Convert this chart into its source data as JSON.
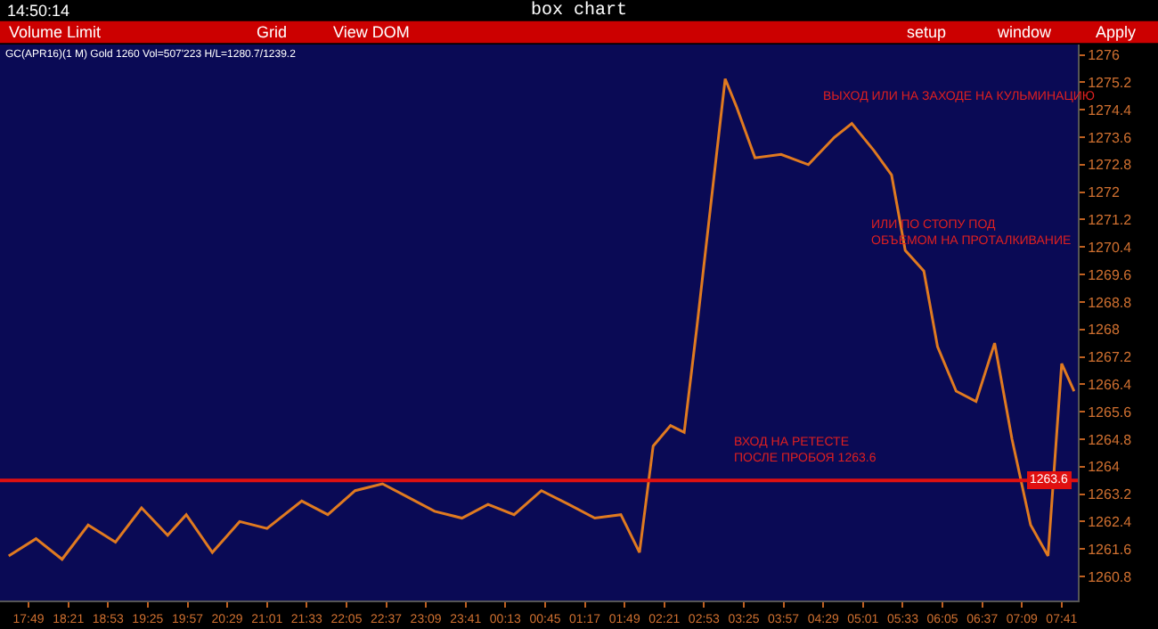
{
  "chart_data": {
    "type": "line",
    "title": "box chart",
    "annotations": [
      "14:50:14",
      "Volume Limit",
      "Grid",
      "View DOM",
      "setup",
      "window",
      "Apply",
      "GC(APR16)(1 M) Gold 1260 Vol=507'223 H/L=1280.7/1239.2",
      "ВЫХОД ИЛИ НА ЗАХОДЕ НА КУЛЬМИНАЦИЮ",
      "ИЛИ ПО СТОПУ ПОД\nОБЪЕМОМ НА ПРОТАЛКИВАНИЕ",
      "ВХОД НА РЕТЕСТЕ\nПОСЛЕ ПРОБОЯ 1263.6"
    ],
    "x": [
      "--03-01T17:33",
      "--03-01T17:55",
      "--03-01T18:16",
      "--03-01T18:37",
      "--03-01T18:59",
      "--03-01T19:20",
      "--03-01T19:41",
      "--03-01T19:56",
      "--03-01T20:17",
      "--03-01T20:39",
      "--03-01T21:01",
      "--03-01T21:29",
      "--03-01T21:50",
      "--03-01T22:12",
      "--03-01T22:34",
      "--03-01T22:55",
      "--03-01T23:16",
      "--03-01T23:38",
      "--03-01T23:59",
      "--03-02T00:20",
      "--03-02T00:42",
      "--03-02T01:04",
      "--03-02T01:25",
      "--03-02T01:46",
      "--03-02T02:01",
      "--03-02T02:12",
      "--03-02T02:26",
      "--03-02T02:37",
      "--03-02T02:47",
      "--03-02T02:58",
      "--03-02T03:10",
      "--03-02T03:19",
      "--03-02T03:34",
      "--03-02T03:55",
      "--03-02T04:17",
      "--03-02T04:38",
      "--03-02T04:52",
      "--03-02T05:10",
      "--03-02T05:24",
      "--03-02T05:35",
      "--03-02T05:50",
      "--03-02T06:01",
      "--03-02T06:16",
      "--03-02T06:32",
      "--03-02T06:47",
      "--03-02T07:01",
      "--03-02T07:16",
      "--03-02T07:30",
      "--03-02T07:41",
      "--03-02T07:51"
    ],
    "series": [
      {
        "color": "#e07a20",
        "values": [
          1261.4,
          1261.9,
          1261.3,
          1262.3,
          1261.8,
          1262.8,
          1262.0,
          1262.6,
          1261.5,
          1262.4,
          1262.2,
          1263.0,
          1262.6,
          1263.3,
          1263.5,
          1263.1,
          1262.7,
          1262.5,
          1262.9,
          1262.6,
          1263.3,
          1262.9,
          1262.5,
          1262.6,
          1261.5,
          1264.6,
          1265.2,
          1265.0,
          1268.0,
          1271.5,
          1275.3,
          1274.5,
          1273.0,
          1273.1,
          1272.8,
          1273.6,
          1274.0,
          1273.2,
          1272.5,
          1270.3,
          1269.7,
          1267.5,
          1266.2,
          1265.9,
          1267.6,
          1264.8,
          1262.3,
          1261.4,
          1267.0,
          1266.2
        ]
      }
    ],
    "xlim": [
      "--03-01T17:26",
      "--03-02T07:54"
    ],
    "xticks": [
      {
        "value": "--03-01T17:49",
        "label": "17:49"
      },
      {
        "value": "--03-01T18:21",
        "label": "18:21"
      },
      {
        "value": "--03-01T18:53",
        "label": "18:53"
      },
      {
        "value": "--03-01T19:25",
        "label": "19:25"
      },
      {
        "value": "--03-01T19:57",
        "label": "19:57"
      },
      {
        "value": "--03-01T20:29",
        "label": "20:29"
      },
      {
        "value": "--03-01T21:01",
        "label": "21:01"
      },
      {
        "value": "--03-01T21:33",
        "label": "21:33"
      },
      {
        "value": "--03-01T22:05",
        "label": "22:05"
      },
      {
        "value": "--03-01T22:37",
        "label": "22:37"
      },
      {
        "value": "--03-01T23:09",
        "label": "23:09"
      },
      {
        "value": "--03-01T23:41",
        "label": "23:41"
      },
      {
        "value": "--03-02T00:13",
        "label": "00:13"
      },
      {
        "value": "--03-02T00:45",
        "label": "00:45"
      },
      {
        "value": "--03-02T01:17",
        "label": "01:17"
      },
      {
        "value": "--03-02T01:49",
        "label": "01:49"
      },
      {
        "value": "--03-02T02:21",
        "label": "02:21"
      },
      {
        "value": "--03-02T02:53",
        "label": "02:53"
      },
      {
        "value": "--03-02T03:25",
        "label": "03:25"
      },
      {
        "value": "--03-02T03:57",
        "label": "03:57"
      },
      {
        "value": "--03-02T04:29",
        "label": "04:29"
      },
      {
        "value": "--03-02T05:01",
        "label": "05:01"
      },
      {
        "value": "--03-02T05:33",
        "label": "05:33"
      },
      {
        "value": "--03-02T06:05",
        "label": "06:05"
      },
      {
        "value": "--03-02T06:37",
        "label": "06:37"
      },
      {
        "value": "--03-02T07:09",
        "label": "07:09"
      },
      {
        "value": "--03-02T07:41",
        "label": "07:41"
      }
    ],
    "ylim": [
      1260.1,
      1276.3
    ],
    "yticks": [
      1260.8,
      1261.6,
      1262.4,
      1263.2,
      1264,
      1264.8,
      1265.6,
      1266.4,
      1267.2,
      1268,
      1268.8,
      1269.6,
      1270.4,
      1271.2,
      1272,
      1272.8,
      1273.6,
      1274.4,
      1275.2,
      1276
    ],
    "ref_lines": [
      {
        "axis": "y",
        "value": 1263.6,
        "label": "1263.6",
        "color": "#e01010"
      }
    ],
    "grid": false,
    "legend": false,
    "marker": "none",
    "line_style": "solid"
  }
}
